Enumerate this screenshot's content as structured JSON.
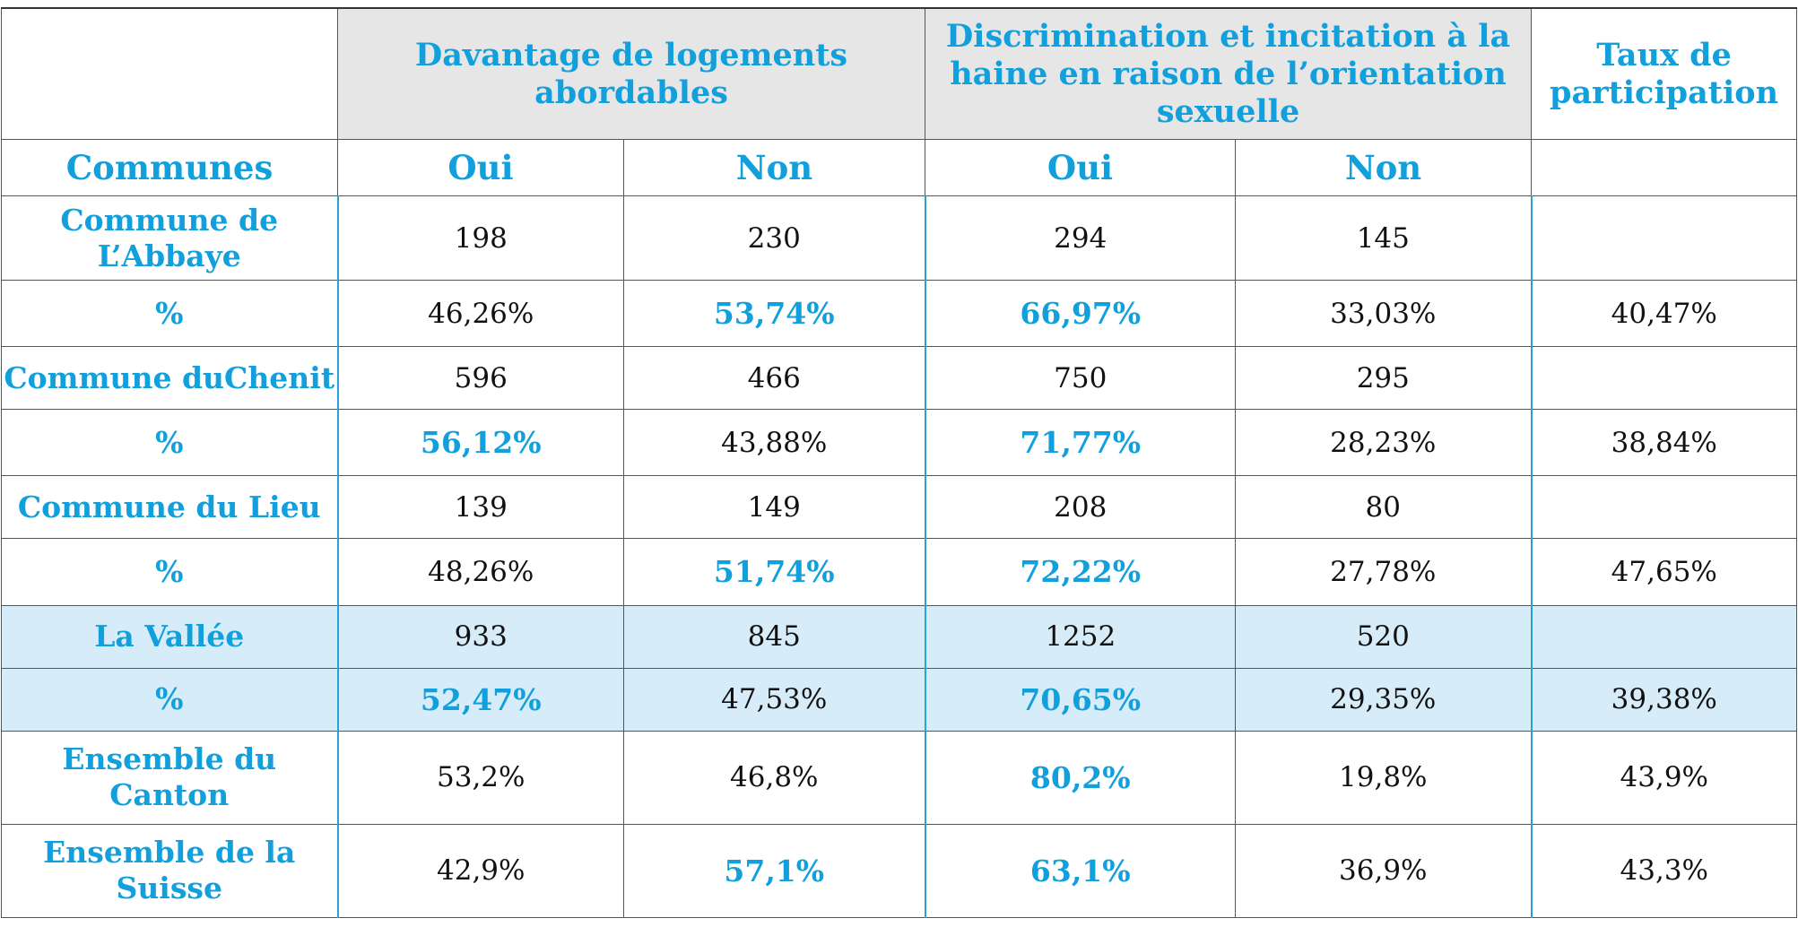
{
  "headers": {
    "group_housing": "Davantage de logements abordables",
    "group_discrimination": "Discrimination et incitation à la haine en raison de l’orientation sexuelle",
    "group_participation": "Taux de participation",
    "communes": "Communes",
    "oui": "Oui",
    "non": "Non"
  },
  "rows": [
    {
      "label": "Commune de L’Abbaye",
      "housing_oui": "198",
      "housing_non": "230",
      "disc_oui": "294",
      "disc_non": "145",
      "participation": ""
    },
    {
      "label": "%",
      "housing_oui": "46,26%",
      "housing_non": "53,74%",
      "disc_oui": "66,97%",
      "disc_non": "33,03%",
      "participation": "40,47%"
    },
    {
      "label": "Commune duChenit",
      "housing_oui": "596",
      "housing_non": "466",
      "disc_oui": "750",
      "disc_non": "295",
      "participation": ""
    },
    {
      "label": "%",
      "housing_oui": "56,12%",
      "housing_non": "43,88%",
      "disc_oui": "71,77%",
      "disc_non": "28,23%",
      "participation": "38,84%"
    },
    {
      "label": "Commune du Lieu",
      "housing_oui": "139",
      "housing_non": "149",
      "disc_oui": "208",
      "disc_non": "80",
      "participation": ""
    },
    {
      "label": "%",
      "housing_oui": "48,26%",
      "housing_non": "51,74%",
      "disc_oui": "72,22%",
      "disc_non": "27,78%",
      "participation": "47,65%"
    },
    {
      "label": "La Vallée",
      "housing_oui": "933",
      "housing_non": "845",
      "disc_oui": "1252",
      "disc_non": "520",
      "participation": ""
    },
    {
      "label": "%",
      "housing_oui": "52,47%",
      "housing_non": "47,53%",
      "disc_oui": "70,65%",
      "disc_non": "29,35%",
      "participation": "39,38%"
    },
    {
      "label": "Ensemble du Canton",
      "housing_oui": "53,2%",
      "housing_non": "46,8%",
      "disc_oui": "80,2%",
      "disc_non": "19,8%",
      "participation": "43,9%"
    },
    {
      "label": "Ensemble de la Suisse",
      "housing_oui": "42,9%",
      "housing_non": "57,1%",
      "disc_oui": "63,1%",
      "disc_non": "36,9%",
      "participation": "43,3%"
    }
  ],
  "colors": {
    "accent": "#12a0dc",
    "header_grey": "#e6e6e6",
    "shade": "#d6edf9"
  }
}
